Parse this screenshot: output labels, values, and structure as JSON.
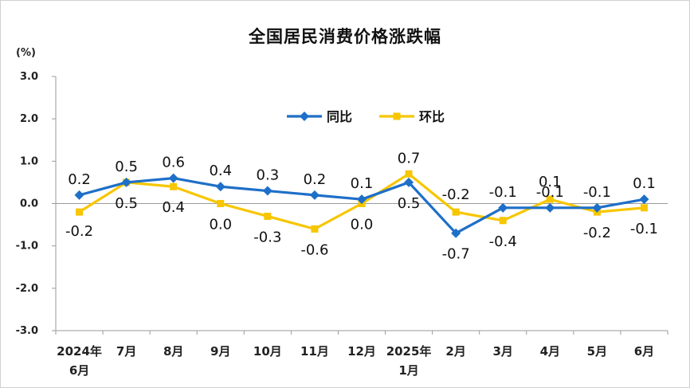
{
  "chart_data": {
    "type": "line",
    "title": "全国居民消费价格涨跌幅",
    "ylabel": "(%)",
    "ylim": [
      -3.0,
      3.0
    ],
    "yticks": [
      "3.0",
      "2.0",
      "1.0",
      "0.0",
      "-1.0",
      "-2.0",
      "-3.0"
    ],
    "grid": false,
    "legend_position": "top-center",
    "categories": [
      [
        "2024年",
        "6月"
      ],
      [
        "7月"
      ],
      [
        "8月"
      ],
      [
        "9月"
      ],
      [
        "10月"
      ],
      [
        "11月"
      ],
      [
        "12月"
      ],
      [
        "2025年",
        "1月"
      ],
      [
        "2月"
      ],
      [
        "3月"
      ],
      [
        "4月"
      ],
      [
        "5月"
      ],
      [
        "6月"
      ]
    ],
    "series": [
      {
        "name": "同比",
        "color": "#1e6fc8",
        "marker": "diamond",
        "values": [
          0.2,
          0.5,
          0.6,
          0.4,
          0.3,
          0.2,
          0.1,
          0.5,
          -0.7,
          -0.1,
          -0.1,
          -0.1,
          0.1
        ],
        "labels": [
          "0.2",
          "0.5",
          "0.6",
          "0.4",
          "0.3",
          "0.2",
          "0.1",
          "0.5",
          "-0.7",
          "-0.1",
          "-0.1",
          "-0.1",
          "0.1"
        ]
      },
      {
        "name": "环比",
        "color": "#f7c600",
        "marker": "square",
        "values": [
          -0.2,
          0.5,
          0.4,
          0.0,
          -0.3,
          -0.6,
          0.0,
          0.7,
          -0.2,
          -0.4,
          0.1,
          -0.2,
          -0.1
        ],
        "labels": [
          "-0.2",
          "0.5",
          "0.4",
          "0.0",
          "-0.3",
          "-0.6",
          "0.0",
          "0.7",
          "-0.2",
          "-0.4",
          "0.1",
          "-0.2",
          "-0.1"
        ]
      }
    ]
  }
}
